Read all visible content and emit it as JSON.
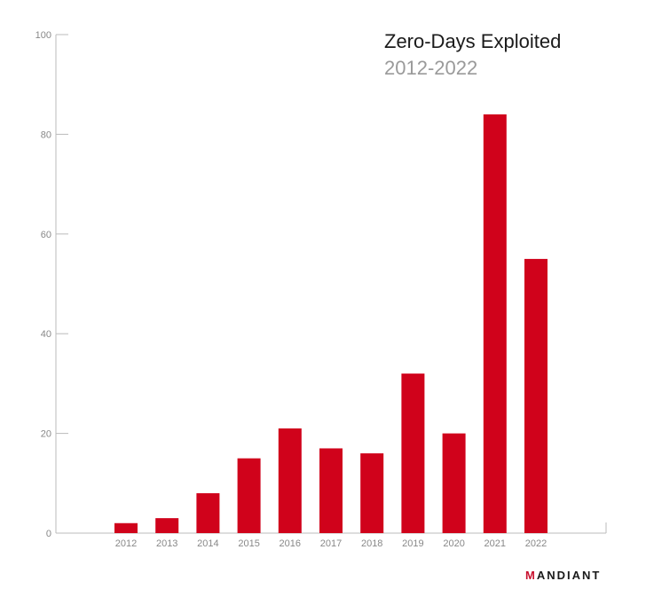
{
  "chart_data": {
    "type": "bar",
    "title": "Zero-Days Exploited",
    "subtitle": "2012-2022",
    "xlabel": "",
    "ylabel": "",
    "categories": [
      "2012",
      "2013",
      "2014",
      "2015",
      "2016",
      "2017",
      "2018",
      "2019",
      "2020",
      "2021",
      "2022"
    ],
    "values": [
      2,
      3,
      8,
      15,
      21,
      17,
      16,
      32,
      20,
      84,
      55
    ],
    "ylim": [
      0,
      100
    ],
    "yticks": [
      0,
      20,
      40,
      60,
      80,
      100
    ],
    "grid": false,
    "legend": "none",
    "bar_color": "#d0021b",
    "axis_color": "#bbbbbb"
  },
  "branding": {
    "logo_mark": "M",
    "logo_rest": "ANDIANT",
    "color": "#c8102e"
  }
}
